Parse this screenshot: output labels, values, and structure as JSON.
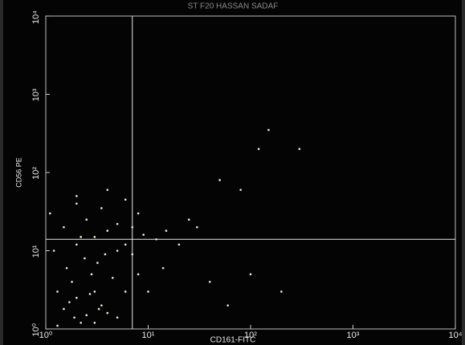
{
  "chart_data": {
    "type": "scatter",
    "title": "ST F20 HASSAN SADAF",
    "x_label": "CD161-FITC",
    "y_label": "CD56 PE",
    "log_x": true,
    "log_y": true,
    "color": "#ecebd8",
    "quadrant_color": "#e6e6e6",
    "xlim": [
      1,
      10000
    ],
    "ylim": [
      1,
      10000
    ],
    "xticks": [
      {
        "value": 1,
        "label": "10⁰"
      },
      {
        "value": 10,
        "label": "10¹"
      },
      {
        "value": 100,
        "label": "10²"
      },
      {
        "value": 1000,
        "label": "10³"
      },
      {
        "value": 10000,
        "label": "10⁴"
      }
    ],
    "yticks": [
      {
        "value": 1,
        "label": "10⁰"
      },
      {
        "value": 10,
        "label": "10¹"
      },
      {
        "value": 100,
        "label": "10²"
      },
      {
        "value": 1000,
        "label": "10³"
      },
      {
        "value": 10000,
        "label": "10⁴"
      }
    ],
    "quadrant": {
      "x": 7,
      "y": 14
    },
    "x": [
      1.5,
      2,
      2.5,
      3,
      1.8,
      2.2,
      3.5,
      1.3,
      2.8,
      4,
      1.6,
      2.4,
      3.2,
      1.2,
      2,
      3,
      1.5,
      2.5,
      4,
      5,
      6,
      1.1,
      2,
      3.5,
      5,
      7,
      9,
      12,
      15,
      20,
      25,
      30,
      2,
      4,
      6,
      8,
      1.3,
      3,
      5,
      6,
      8,
      10,
      14,
      40,
      100,
      200,
      60,
      7,
      4.5,
      2.2,
      3.8,
      1.7,
      2.7,
      3.3,
      1.9,
      50,
      150,
      300,
      120,
      80
    ],
    "y": [
      1.8,
      2.5,
      1.5,
      3,
      4,
      1.2,
      2,
      3,
      5,
      1.6,
      6,
      8,
      7,
      10,
      12,
      15,
      20,
      25,
      18,
      10,
      12,
      30,
      40,
      35,
      22,
      20,
      16,
      14,
      18,
      12,
      25,
      20,
      50,
      60,
      45,
      30,
      1.1,
      1.2,
      1.4,
      3,
      5,
      3,
      6,
      4,
      5,
      3,
      2,
      9,
      4.5,
      15,
      9,
      2.2,
      2.8,
      1.8,
      1.4,
      80,
      350,
      200,
      200,
      60
    ]
  }
}
